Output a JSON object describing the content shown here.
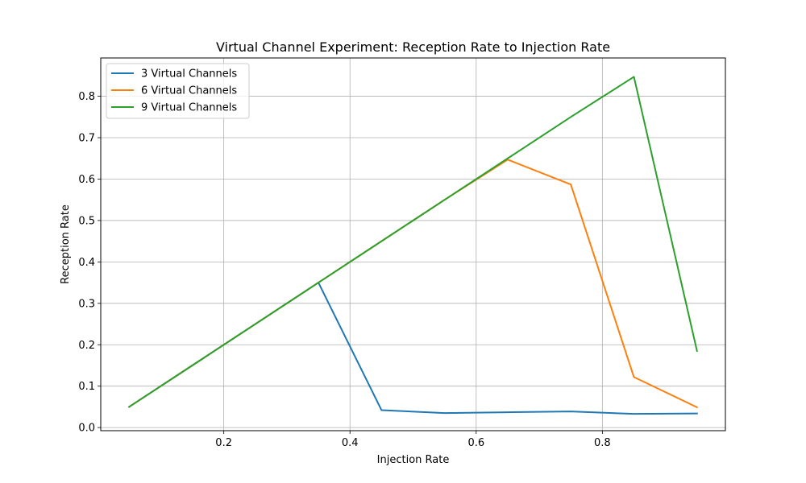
{
  "chart_data": {
    "type": "line",
    "title": "Virtual Channel Experiment: Reception Rate to Injection Rate",
    "xlabel": "Injection Rate",
    "ylabel": "Reception Rate",
    "xlim": [
      0.005,
      0.995
    ],
    "ylim": [
      -0.0075,
      0.8925
    ],
    "xticks": [
      0.2,
      0.4,
      0.6,
      0.8
    ],
    "xtick_labels": [
      "0.2",
      "0.4",
      "0.6",
      "0.8"
    ],
    "yticks": [
      0.0,
      0.1,
      0.2,
      0.3,
      0.4,
      0.5,
      0.6,
      0.7,
      0.8
    ],
    "ytick_labels": [
      "0.0",
      "0.1",
      "0.2",
      "0.3",
      "0.4",
      "0.5",
      "0.6",
      "0.7",
      "0.8"
    ],
    "grid": true,
    "legend_position": "top-left",
    "x": [
      0.05,
      0.15,
      0.25,
      0.35,
      0.45,
      0.55,
      0.65,
      0.75,
      0.85,
      0.95
    ],
    "series": [
      {
        "name": "3 Virtual Channels",
        "color": "#1f77b4",
        "values": [
          0.05,
          0.15,
          0.25,
          0.35,
          0.042,
          0.035,
          0.037,
          0.039,
          0.033,
          0.034
        ]
      },
      {
        "name": "6 Virtual Channels",
        "color": "#ff7f0e",
        "values": [
          0.05,
          0.15,
          0.25,
          0.35,
          0.45,
          0.55,
          0.647,
          0.587,
          0.122,
          0.049
        ]
      },
      {
        "name": "9 Virtual Channels",
        "color": "#2ca02c",
        "values": [
          0.05,
          0.15,
          0.25,
          0.35,
          0.45,
          0.55,
          0.65,
          0.75,
          0.847,
          0.185
        ]
      }
    ]
  }
}
